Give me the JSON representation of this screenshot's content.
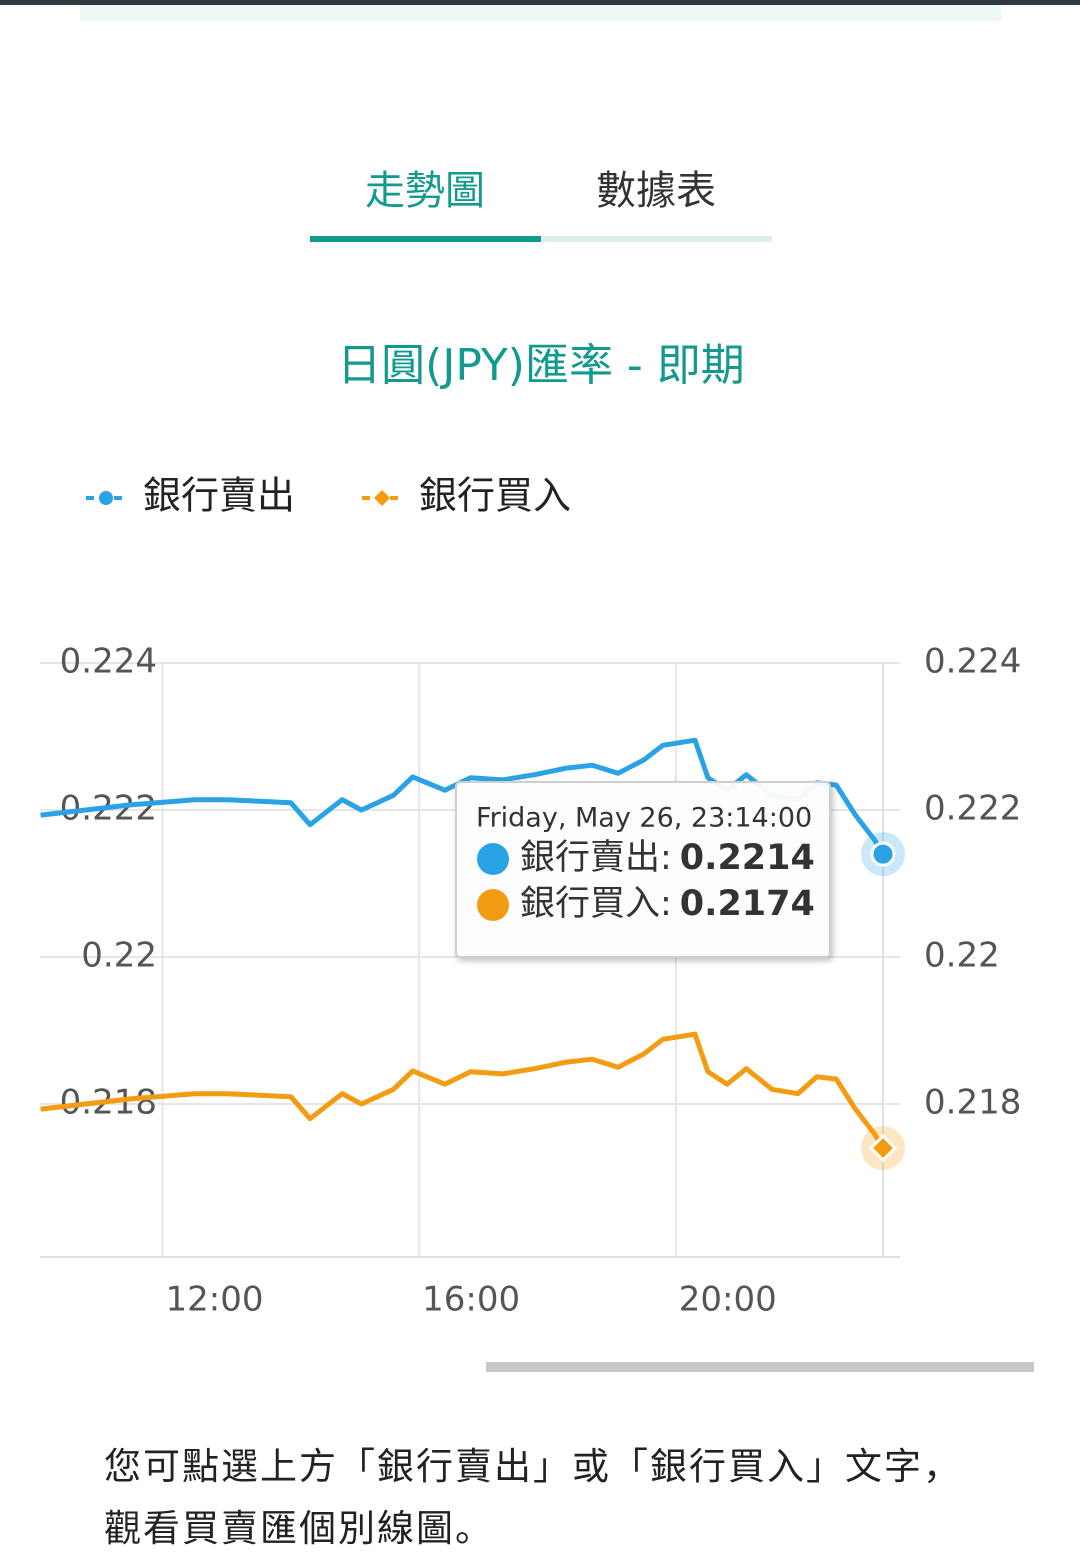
{
  "tabs": [
    "走勢圖",
    "數據表"
  ],
  "chart_data": {
    "type": "line",
    "title": "日圓(JPY)匯率 - 即期",
    "x": [
      10.1,
      11.5,
      12.5,
      13,
      14,
      14.3,
      14.8,
      15.1,
      15.6,
      15.9,
      16.4,
      16.8,
      17.3,
      17.8,
      18.3,
      18.7,
      19.1,
      19.5,
      19.8,
      20.3,
      20.5,
      20.8,
      21.1,
      21.5,
      21.9,
      22.2,
      22.5,
      22.8,
      23.1,
      23.23
    ],
    "series": [
      {
        "name": "銀行賣出",
        "color": "#2aa2e6",
        "values": [
          0.22193,
          0.22207,
          0.22214,
          0.22214,
          0.2221,
          0.2218,
          0.22214,
          0.222,
          0.2222,
          0.22245,
          0.22227,
          0.22244,
          0.22241,
          0.22248,
          0.22257,
          0.22261,
          0.2225,
          0.22268,
          0.22288,
          0.22295,
          0.22244,
          0.22227,
          0.22248,
          0.2222,
          0.22214,
          0.22237,
          0.22234,
          0.22193,
          0.22159,
          0.2214
        ]
      },
      {
        "name": "銀行買入",
        "color": "#f39c12",
        "values": [
          0.21793,
          0.21807,
          0.21814,
          0.21814,
          0.2181,
          0.2178,
          0.21814,
          0.218,
          0.2182,
          0.21845,
          0.21827,
          0.21844,
          0.21841,
          0.21848,
          0.21857,
          0.21861,
          0.2185,
          0.21868,
          0.21888,
          0.21895,
          0.21844,
          0.21827,
          0.21848,
          0.2182,
          0.21814,
          0.21837,
          0.21834,
          0.21793,
          0.21759,
          0.2174
        ]
      }
    ],
    "xlim": [
      10.09,
      23.23
    ],
    "xticks": [
      {
        "value": 12,
        "label": "12:00"
      },
      {
        "value": 16,
        "label": "16:00"
      },
      {
        "value": 20,
        "label": "20:00"
      }
    ],
    "ylim": [
      0.216,
      0.224
    ],
    "yticks": [
      0.224,
      0.222,
      0.22,
      0.218
    ],
    "y2lim": [
      0.216,
      0.224
    ],
    "y2ticks": [
      0.224,
      0.222,
      0.22,
      0.218
    ],
    "grid": true,
    "legend": "top-left",
    "tooltip": {
      "title": "Friday, May 26, 23:14:00",
      "labels": [
        "銀行賣出:",
        "銀行買入:"
      ]
    }
  },
  "footer": "您可點選上方「銀行賣出」或「銀行買入」文字，觀看買賣匯個別線圖。"
}
